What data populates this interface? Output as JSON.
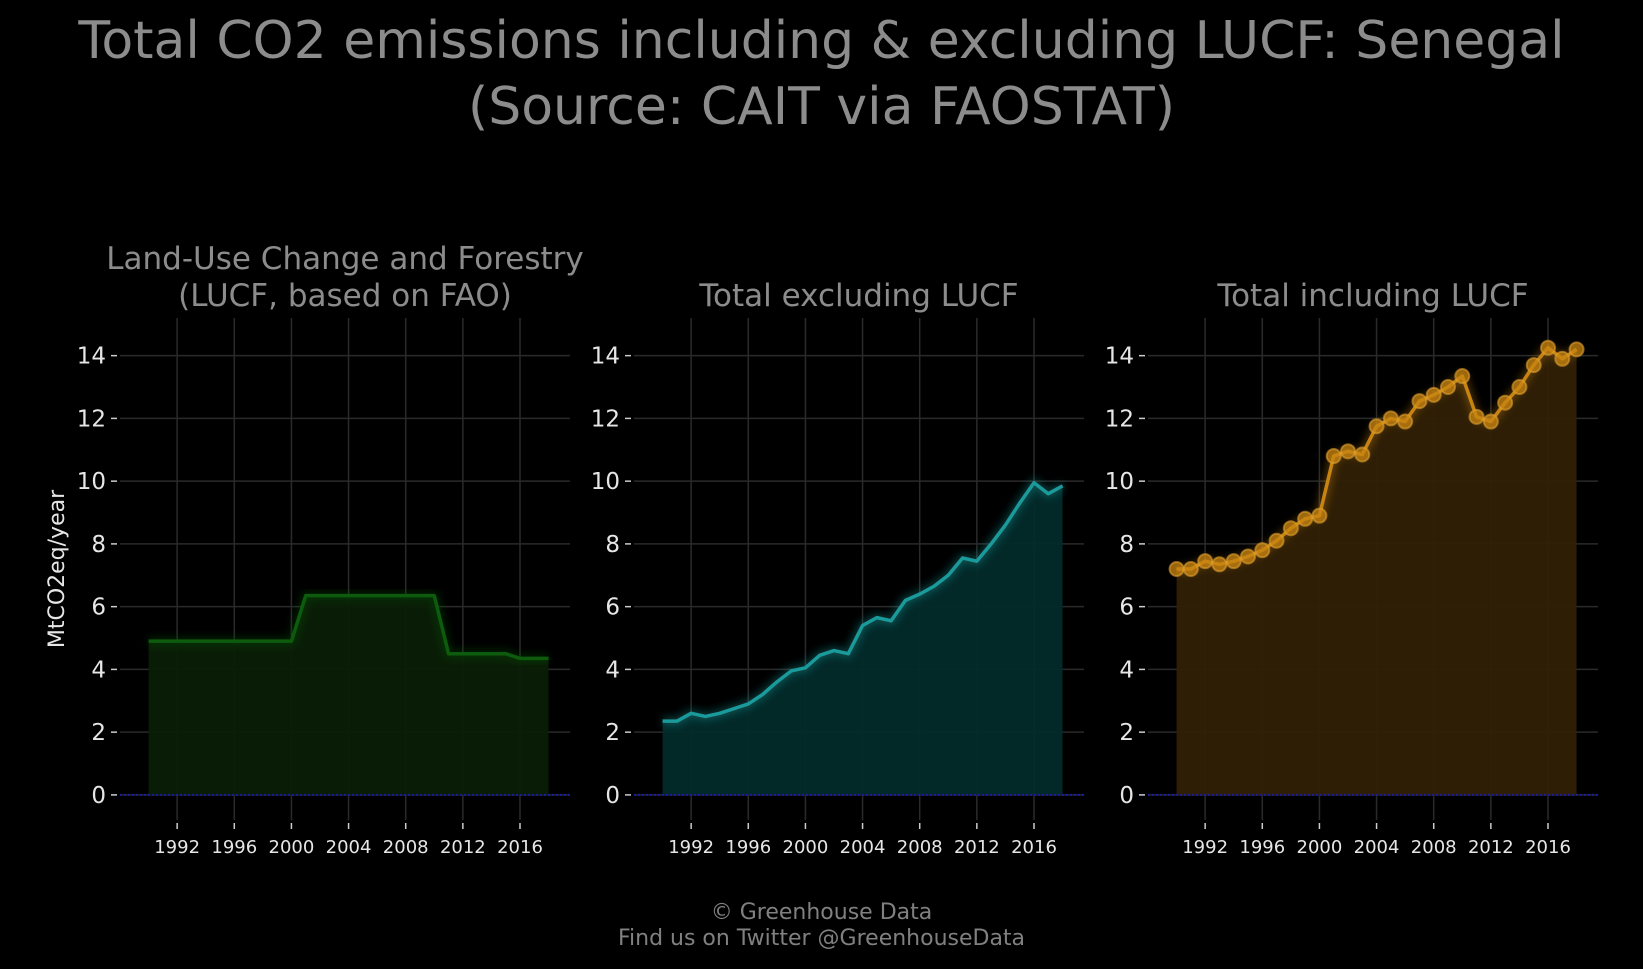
{
  "title_line1": "Total CO2 emissions including & excluding LUCF: Senegal",
  "title_line2": "(Source: CAIT via FAOSTAT)",
  "footer": {
    "line1": "© Greenhouse Data",
    "line2": "Find us on Twitter @GreenhouseData"
  },
  "chart_data": [
    {
      "type": "area",
      "title": "Land-Use Change and Forestry\n(LUCF, based on FAO)",
      "ylabel": "MtCO2eq/year",
      "color": "#0d5c0d",
      "fill": "#0a1f06",
      "markers": false,
      "x": [
        1990,
        1991,
        1992,
        1993,
        1994,
        1995,
        1996,
        1997,
        1998,
        1999,
        2000,
        2001,
        2002,
        2003,
        2004,
        2005,
        2006,
        2007,
        2008,
        2009,
        2010,
        2011,
        2012,
        2013,
        2014,
        2015,
        2016,
        2017,
        2018
      ],
      "y": [
        4.9,
        4.9,
        4.9,
        4.9,
        4.9,
        4.9,
        4.9,
        4.9,
        4.9,
        4.9,
        4.9,
        6.35,
        6.35,
        6.35,
        6.35,
        6.35,
        6.35,
        6.35,
        6.35,
        6.35,
        6.35,
        4.5,
        4.5,
        4.5,
        4.5,
        4.5,
        4.35,
        4.35,
        4.35
      ],
      "xlim": [
        1988,
        2019.5
      ],
      "ylim": [
        -0.8,
        15.2
      ],
      "xticks": [
        1992,
        1996,
        2000,
        2004,
        2008,
        2012,
        2016
      ],
      "yticks": [
        0,
        2,
        4,
        6,
        8,
        10,
        12,
        14
      ]
    },
    {
      "type": "area",
      "title": "Total excluding LUCF",
      "color": "#1a9a9a",
      "fill": "#032a2a",
      "markers": false,
      "x": [
        1990,
        1991,
        1992,
        1993,
        1994,
        1995,
        1996,
        1997,
        1998,
        1999,
        2000,
        2001,
        2002,
        2003,
        2004,
        2005,
        2006,
        2007,
        2008,
        2009,
        2010,
        2011,
        2012,
        2013,
        2014,
        2015,
        2016,
        2017,
        2018
      ],
      "y": [
        2.35,
        2.35,
        2.6,
        2.5,
        2.6,
        2.75,
        2.9,
        3.2,
        3.6,
        3.95,
        4.05,
        4.45,
        4.6,
        4.5,
        5.4,
        5.65,
        5.55,
        6.2,
        6.4,
        6.65,
        7.0,
        7.55,
        7.45,
        8.0,
        8.6,
        9.3,
        9.95,
        9.6,
        9.85
      ],
      "xlim": [
        1988,
        2019.5
      ],
      "ylim": [
        -0.8,
        15.2
      ],
      "xticks": [
        1992,
        1996,
        2000,
        2004,
        2008,
        2012,
        2016
      ],
      "yticks": [
        0,
        2,
        4,
        6,
        8,
        10,
        12,
        14
      ]
    },
    {
      "type": "area",
      "title": "Total including LUCF",
      "color": "#c88410",
      "fill": "#302005",
      "markers": true,
      "x": [
        1990,
        1991,
        1992,
        1993,
        1994,
        1995,
        1996,
        1997,
        1998,
        1999,
        2000,
        2001,
        2002,
        2003,
        2004,
        2005,
        2006,
        2007,
        2008,
        2009,
        2010,
        2011,
        2012,
        2013,
        2014,
        2015,
        2016,
        2017,
        2018
      ],
      "y": [
        7.2,
        7.2,
        7.45,
        7.35,
        7.45,
        7.6,
        7.8,
        8.1,
        8.5,
        8.8,
        8.9,
        10.8,
        10.95,
        10.85,
        11.75,
        12.0,
        11.9,
        12.55,
        12.75,
        13.0,
        13.35,
        12.05,
        11.9,
        12.5,
        13.0,
        13.7,
        14.25,
        13.9,
        14.2
      ],
      "xlim": [
        1988,
        2019.5
      ],
      "ylim": [
        -0.8,
        15.2
      ],
      "xticks": [
        1992,
        1996,
        2000,
        2004,
        2008,
        2012,
        2016
      ],
      "yticks": [
        0,
        2,
        4,
        6,
        8,
        10,
        12,
        14
      ]
    }
  ]
}
